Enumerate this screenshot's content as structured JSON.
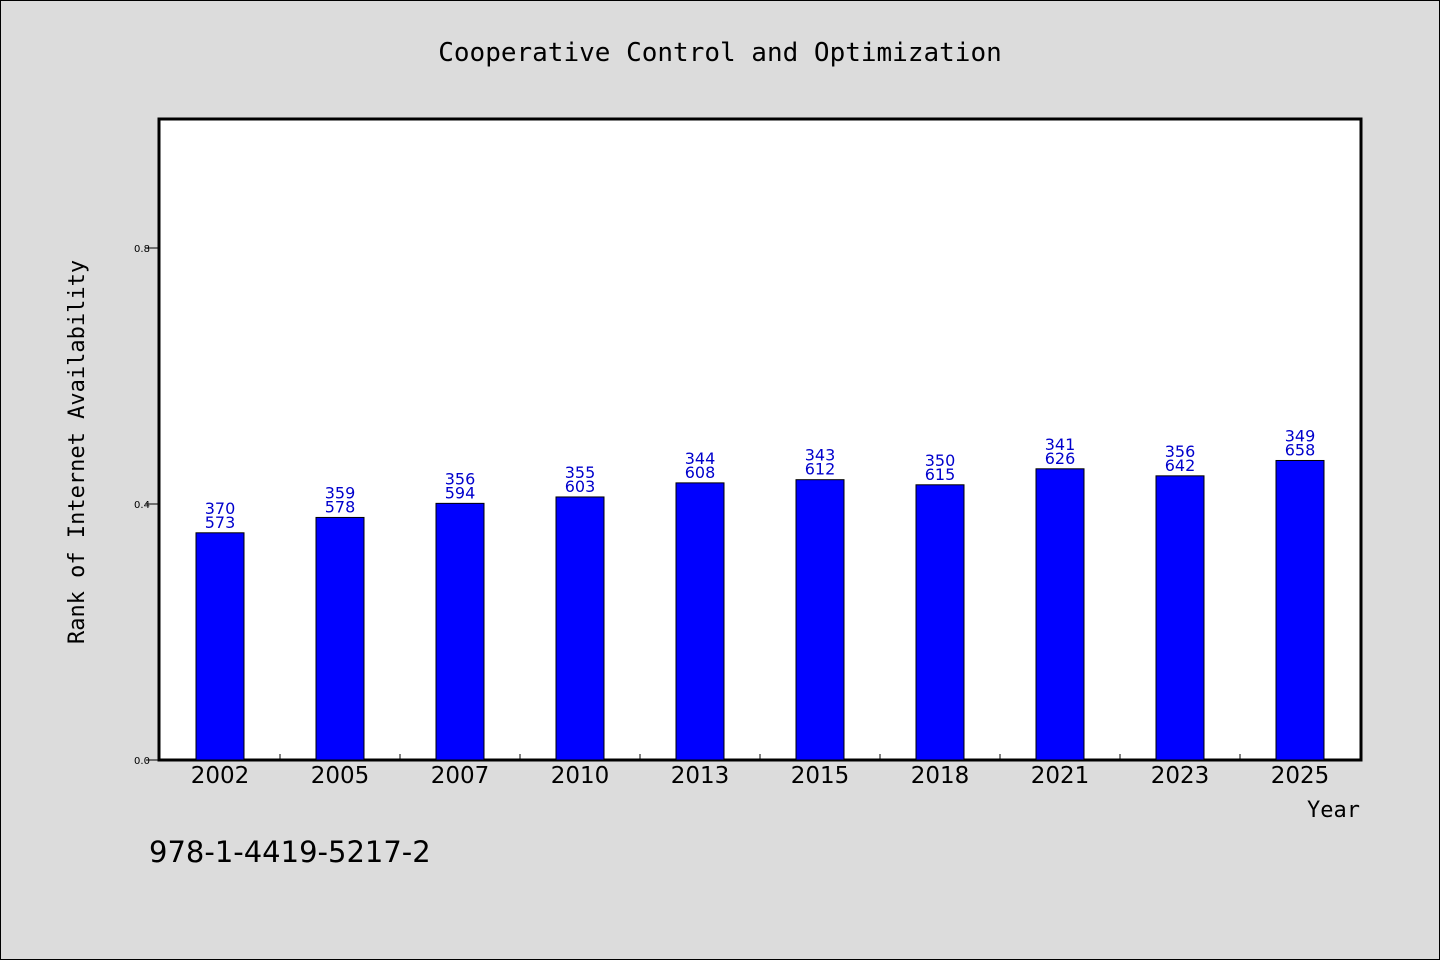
{
  "chart_data": {
    "type": "bar",
    "title": "Cooperative Control and Optimization",
    "xlabel": "Year",
    "ylabel": "Rank of Internet Availability",
    "ylim": [
      0,
      1
    ],
    "yticks": [
      "0.0",
      "0.4",
      "0.8"
    ],
    "grid": false,
    "categories": [
      "2002",
      "2005",
      "2007",
      "2010",
      "2013",
      "2015",
      "2018",
      "2021",
      "2023",
      "2025"
    ],
    "values": [
      0.355,
      0.379,
      0.401,
      0.411,
      0.433,
      0.438,
      0.43,
      0.455,
      0.444,
      0.468
    ],
    "bar_labels": [
      [
        "370",
        "573"
      ],
      [
        "359",
        "578"
      ],
      [
        "356",
        "594"
      ],
      [
        "355",
        "603"
      ],
      [
        "344",
        "608"
      ],
      [
        "343",
        "612"
      ],
      [
        "350",
        "615"
      ],
      [
        "341",
        "626"
      ],
      [
        "356",
        "642"
      ],
      [
        "349",
        "658"
      ]
    ],
    "bar_color": "#0000ff",
    "label_color": "#0000cc"
  },
  "footer": {
    "isbn": "978-1-4419-5217-2"
  },
  "background_color": "#dcdcdc"
}
